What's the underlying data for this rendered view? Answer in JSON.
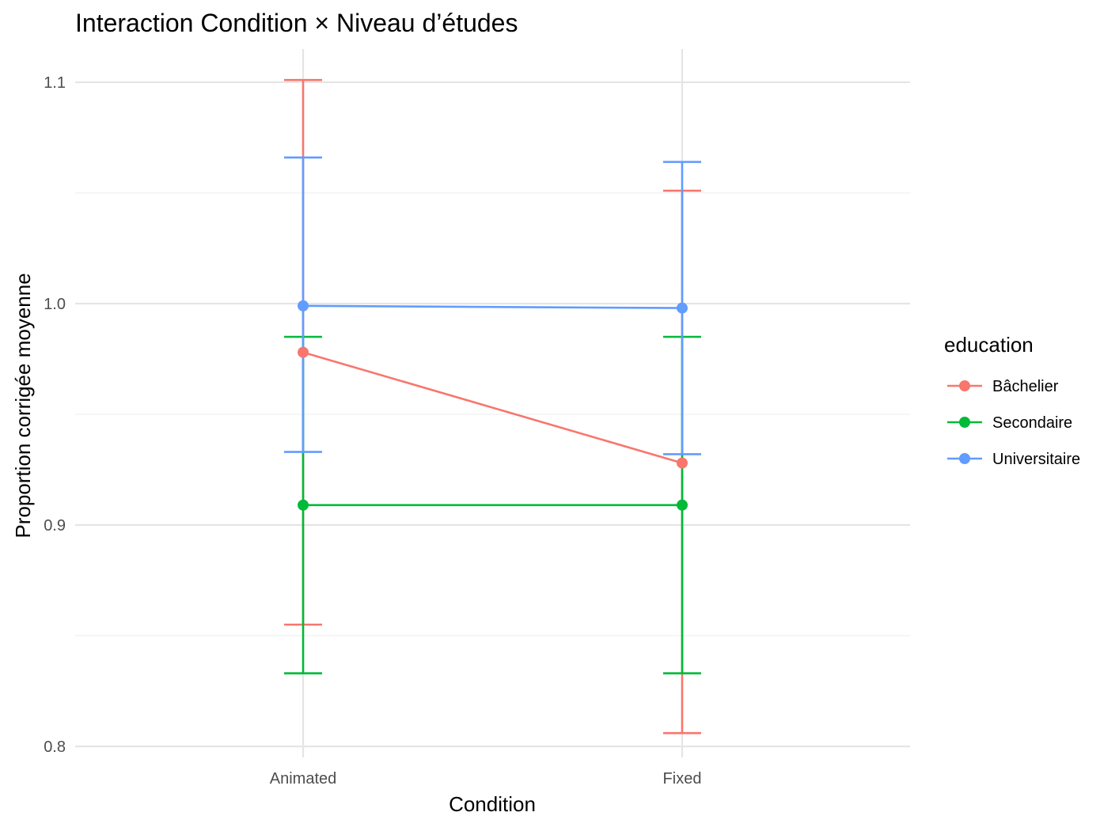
{
  "chart_data": {
    "type": "line",
    "title": "Interaction Condition × Niveau d’études",
    "xlabel": "Condition",
    "ylabel": "Proportion corrigée moyenne",
    "categories": [
      "Animated",
      "Fixed"
    ],
    "ylim": [
      0.795,
      1.115
    ],
    "yticks": [
      0.8,
      0.9,
      1.0,
      1.1
    ],
    "ytick_labels": [
      "0.8",
      "0.9",
      "1.0",
      "1.1"
    ],
    "yminor": [
      0.85,
      0.95,
      1.05
    ],
    "grid": true,
    "legend": {
      "title": "education",
      "position": "right"
    },
    "series": [
      {
        "name": "Bâchelier",
        "color": "#F8766D",
        "values": [
          0.978,
          0.928
        ],
        "lower": [
          0.855,
          0.806
        ],
        "upper": [
          1.101,
          1.051
        ]
      },
      {
        "name": "Secondaire",
        "color": "#00BA38",
        "values": [
          0.909,
          0.909
        ],
        "lower": [
          0.833,
          0.833
        ],
        "upper": [
          0.985,
          0.985
        ]
      },
      {
        "name": "Universitaire",
        "color": "#619CFF",
        "values": [
          0.999,
          0.998
        ],
        "lower": [
          0.933,
          0.932
        ],
        "upper": [
          1.066,
          1.064
        ]
      }
    ]
  }
}
